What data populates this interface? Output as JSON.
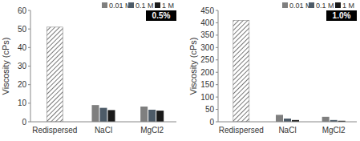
{
  "chart_data": [
    {
      "type": "bar",
      "title": "0.5%",
      "y_label": "Viscosity (cPs)",
      "categories": [
        "Redispersed",
        "NaCl",
        "MgCl2"
      ],
      "series": [
        {
          "color": "#ffffff",
          "values": [
            51,
            null,
            null
          ]
        },
        {
          "name": "0.01 M",
          "color": "#7f7f7f",
          "values": [
            null,
            9,
            8.2
          ]
        },
        {
          "name": "0.1 M",
          "color": "#4d5b68",
          "values": [
            null,
            7.5,
            6.5
          ]
        },
        {
          "name": "1 M",
          "color": "#1a1a1a",
          "values": [
            null,
            6.3,
            6
          ]
        }
      ],
      "ylim": [
        0,
        60
      ],
      "yticks": [
        0,
        10,
        20,
        30,
        40,
        50,
        60
      ],
      "legend": "top-right",
      "grid": false
    },
    {
      "type": "bar",
      "title": "1.0%",
      "y_label": "Viscosity (cPs)",
      "categories": [
        "Redispersed",
        "NaCl",
        "MgCl2"
      ],
      "series": [
        {
          "color": "#ffffff",
          "values": [
            410,
            null,
            null
          ]
        },
        {
          "name": "0.01 M",
          "color": "#7f7f7f",
          "values": [
            null,
            28,
            20
          ]
        },
        {
          "name": "0.1 M",
          "color": "#4d5b68",
          "values": [
            null,
            13,
            7
          ]
        },
        {
          "name": "1 M",
          "color": "#1a1a1a",
          "values": [
            null,
            7,
            4
          ]
        }
      ],
      "ylim": [
        0,
        450
      ],
      "yticks": [
        0,
        50,
        100,
        150,
        200,
        250,
        300,
        350,
        400,
        450
      ],
      "legend": "top-right",
      "grid": false
    }
  ]
}
